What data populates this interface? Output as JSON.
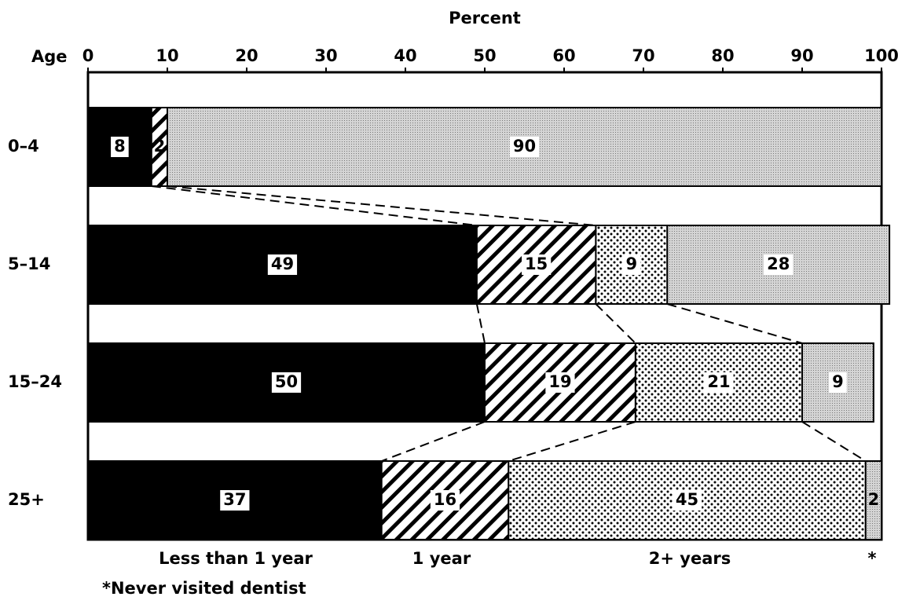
{
  "chart_data": {
    "type": "stacked-bar-horizontal",
    "x_label": "Percent",
    "category_header": "Age",
    "categories": [
      "0–4",
      "5–14",
      "15–24",
      "25+"
    ],
    "series": [
      {
        "name": "Less than 1 year",
        "color": "#000000",
        "pattern": "solid",
        "values": [
          8,
          49,
          50,
          37
        ]
      },
      {
        "name": "1 year",
        "color": "#000000",
        "pattern": "hatch",
        "values": [
          2,
          15,
          19,
          16
        ]
      },
      {
        "name": "2+ years",
        "color": "#000000",
        "pattern": "dots",
        "values": [
          null,
          9,
          21,
          45
        ]
      },
      {
        "name": "*",
        "color": "#bdbdbd",
        "pattern": "stipple",
        "values": [
          90,
          28,
          9,
          2
        ]
      }
    ],
    "footnote": "*Never visited dentist",
    "xlim": [
      0,
      100
    ],
    "xticks": [
      0,
      10,
      20,
      30,
      40,
      50,
      60,
      70,
      80,
      90,
      100
    ]
  }
}
